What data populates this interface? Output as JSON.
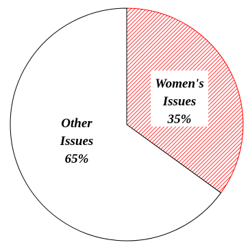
{
  "chart_data": {
    "type": "pie",
    "title": "",
    "start_angle_deg": 0,
    "direction": "clockwise",
    "slices": [
      {
        "name": "Women's Issues",
        "value": 35,
        "label_lines": [
          "Women's",
          "Issues",
          "35%"
        ],
        "fill": "hatch",
        "hatch_color": "#ff0000",
        "stroke": "#ff0000"
      },
      {
        "name": "Other Issues",
        "value": 65,
        "label_lines": [
          "Other",
          "Issues",
          "65%"
        ],
        "fill": "#ffffff",
        "stroke": "#000000"
      }
    ]
  }
}
